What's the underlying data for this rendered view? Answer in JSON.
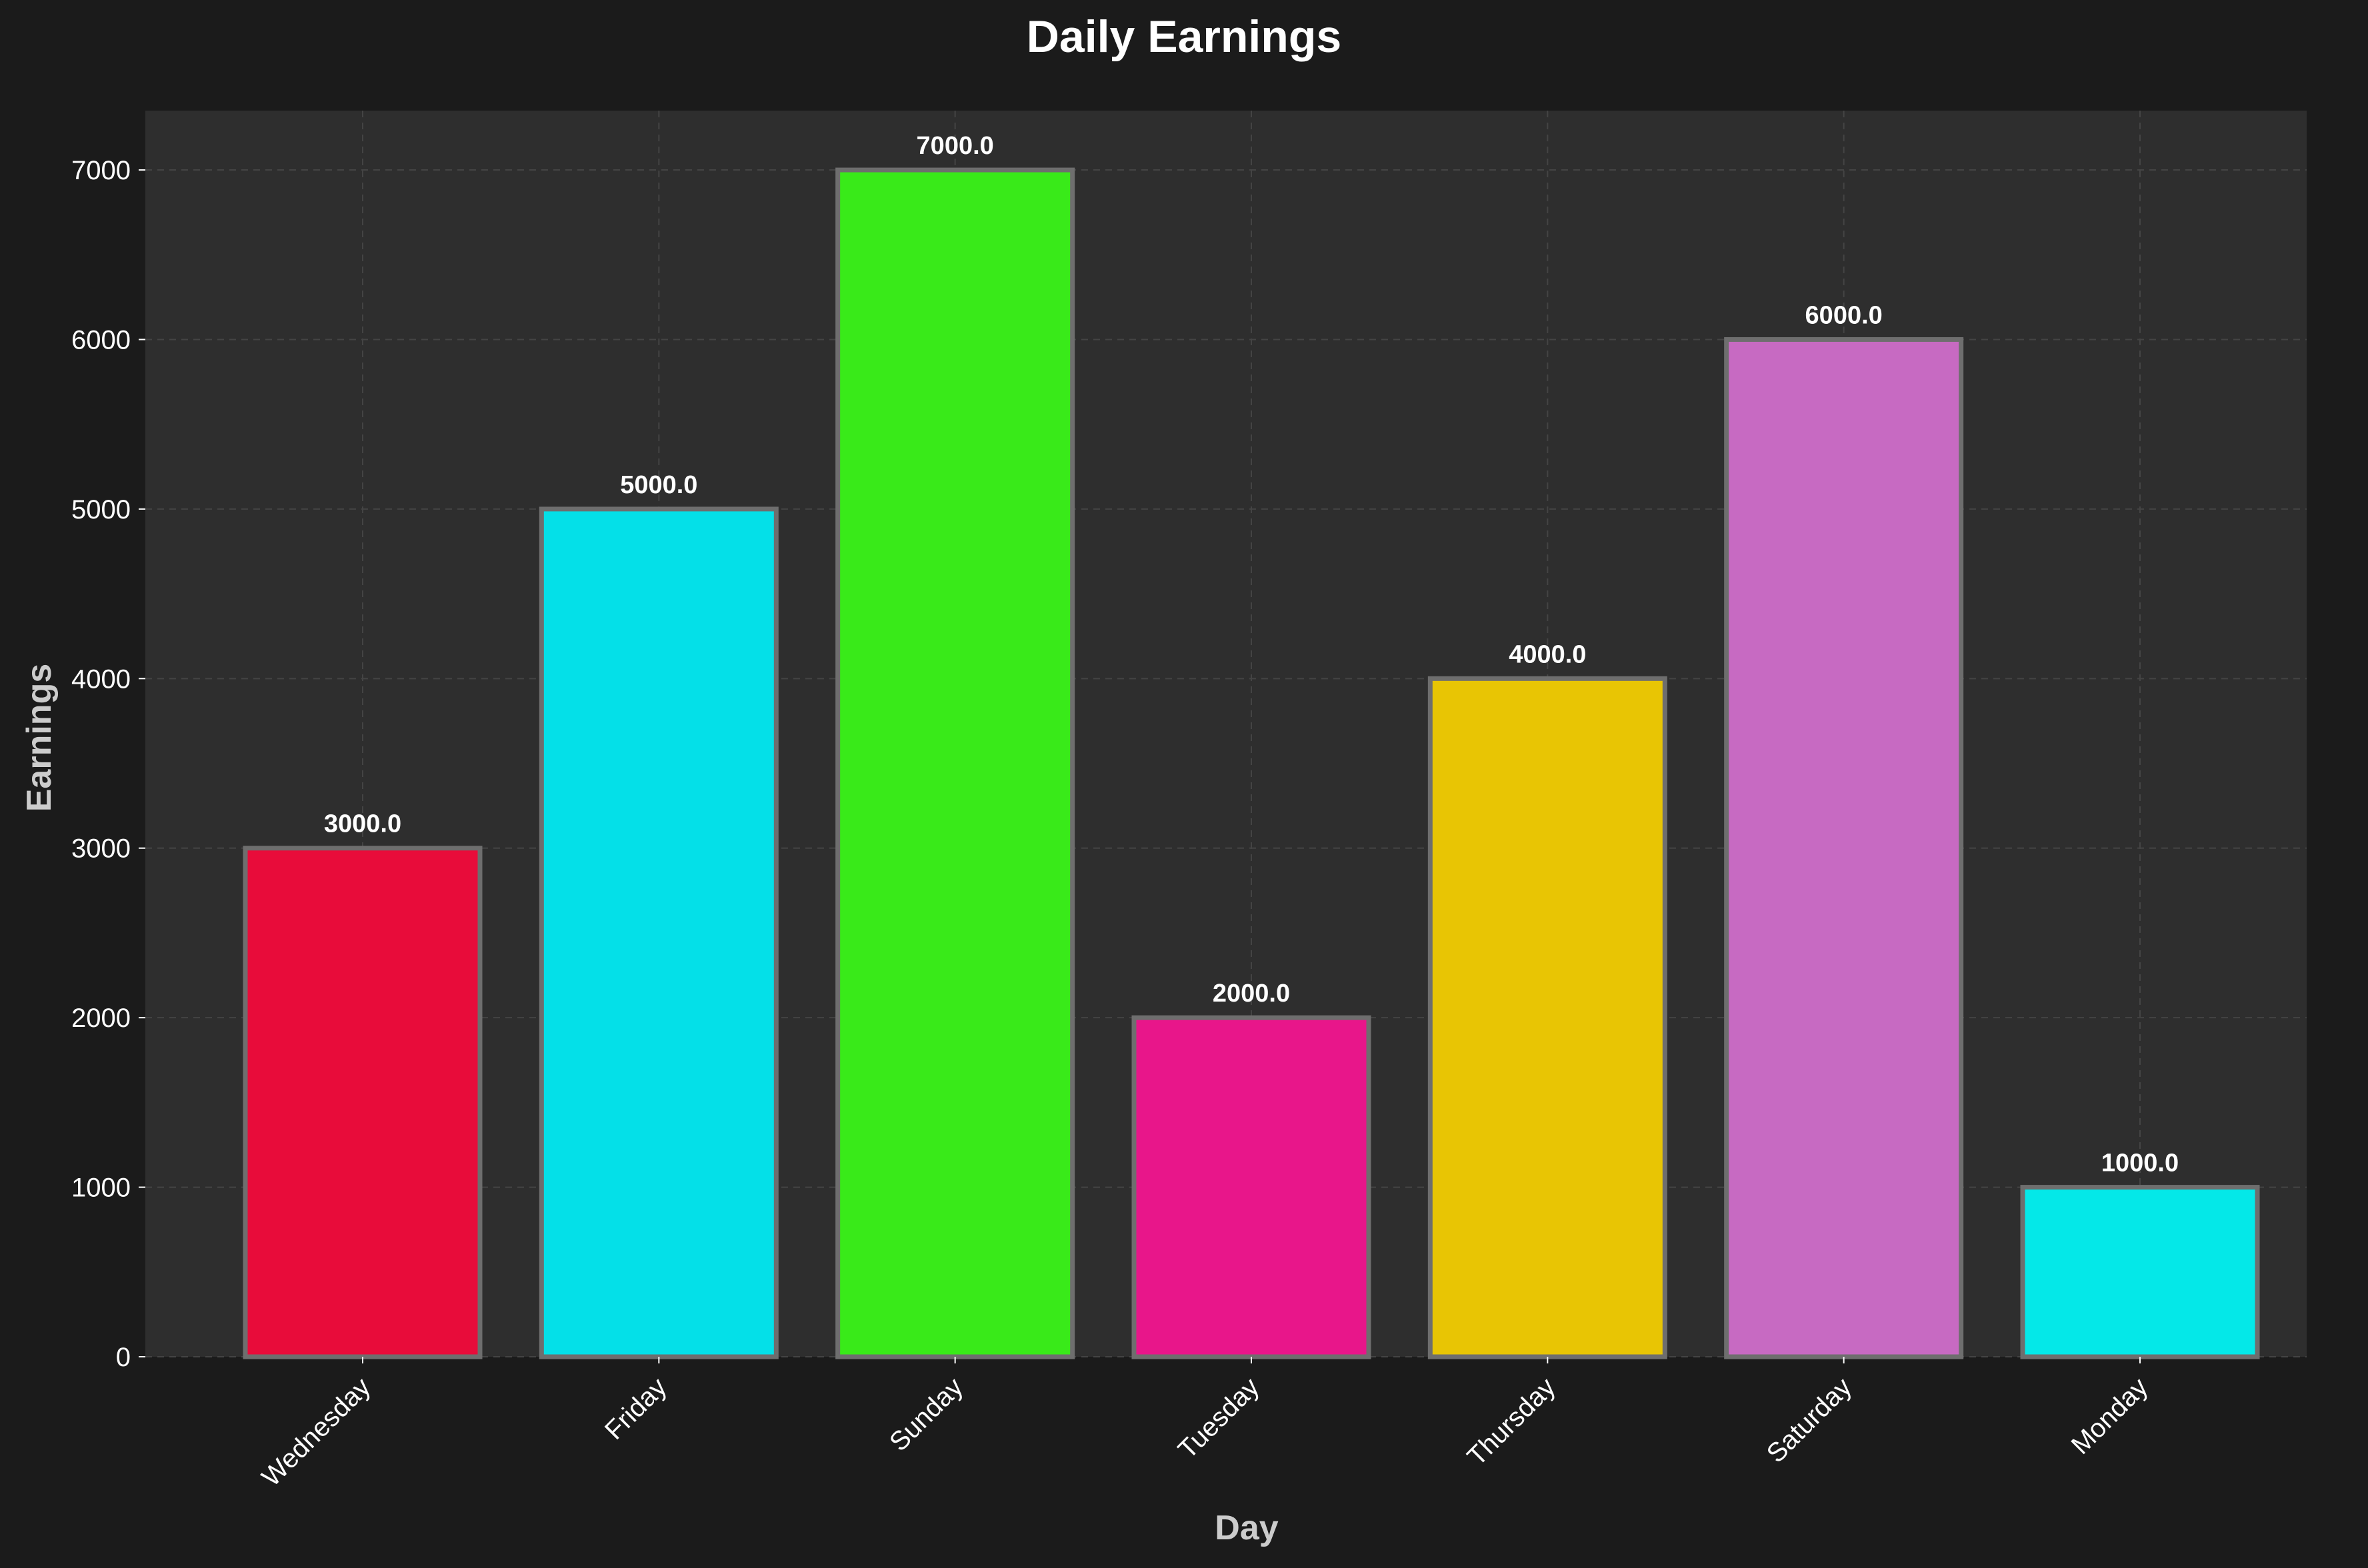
{
  "chart_data": {
    "type": "bar",
    "title": "Daily Earnings",
    "xlabel": "Day",
    "ylabel": "Earnings",
    "categories": [
      "Wednesday",
      "Friday",
      "Sunday",
      "Tuesday",
      "Thursday",
      "Saturday",
      "Monday"
    ],
    "values": [
      3000,
      5000,
      7000,
      2000,
      4000,
      6000,
      1000
    ],
    "value_labels": [
      "3000.0",
      "5000.0",
      "7000.0",
      "2000.0",
      "4000.0",
      "6000.0",
      "1000.0"
    ],
    "bar_colors": [
      "#e80c3a",
      "#04e0e8",
      "#39ea19",
      "#e8168a",
      "#e8c504",
      "#c76ac2",
      "#04e8e8"
    ],
    "ylim": [
      0,
      7350
    ],
    "yticks": [
      0,
      1000,
      2000,
      3000,
      4000,
      5000,
      6000,
      7000
    ],
    "grid": true,
    "colors": {
      "figure_bg": "#1b1b1b",
      "plot_bg": "#2e2e2e",
      "grid": "#444444",
      "bar_edge": "#6e6e6e",
      "text": "#ffffff",
      "axis_label": "#cccccc"
    }
  }
}
